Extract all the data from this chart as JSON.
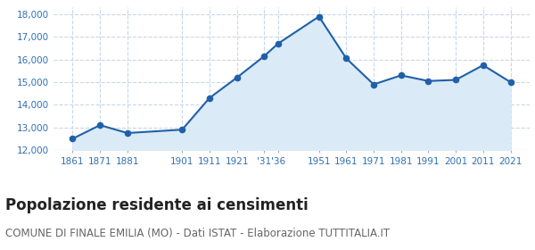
{
  "x_labels": [
    "1861",
    "1871",
    "1881",
    "",
    "1901",
    "1911",
    "1921",
    "'31",
    "'36",
    "",
    "1951",
    "1961",
    "1971",
    "1981",
    "1991",
    "2001",
    "2011",
    "2021"
  ],
  "x_tick_labels": [
    "1861",
    "1871",
    "1881",
    "1901",
    "1911",
    "1921",
    "'31'36",
    "1951",
    "1961",
    "1971",
    "1981",
    "1991",
    "2001",
    "2011",
    "2021"
  ],
  "x_values": [
    1861,
    1871,
    1881,
    1901,
    1911,
    1921,
    1931,
    1936,
    1951,
    1961,
    1971,
    1981,
    1991,
    2001,
    2011,
    2021
  ],
  "y_values": [
    12500,
    13100,
    12750,
    12900,
    14300,
    15200,
    16150,
    16700,
    17900,
    16050,
    14900,
    15300,
    15050,
    15100,
    15750,
    15000
  ],
  "x_tick_positions": [
    1861,
    1871,
    1881,
    1901,
    1911,
    1921,
    1931,
    1936,
    1951,
    1961,
    1971,
    1981,
    1991,
    2001,
    2011,
    2021
  ],
  "x_tick_display": [
    "1861",
    "1871",
    "1881",
    "1901",
    "1911",
    "1921",
    "'31",
    "'36",
    "1951",
    "1961",
    "1971",
    "1981",
    "1991",
    "2001",
    "2011",
    "2021"
  ],
  "line_color": "#2060a8",
  "fill_color": "#daeaf6",
  "marker_color": "#2060a8",
  "background_color": "#ffffff",
  "grid_color": "#c8d8e8",
  "ylim": [
    12000,
    18300
  ],
  "yticks": [
    12000,
    13000,
    14000,
    15000,
    16000,
    17000,
    18000
  ],
  "title": "Popolazione residente ai censimenti",
  "subtitle": "COMUNE DI FINALE EMILIA (MO) - Dati ISTAT - Elaborazione TUTTITALIA.IT",
  "title_fontsize": 12,
  "subtitle_fontsize": 8.5,
  "tick_label_color": "#3070b0",
  "xlim_left": 1854,
  "xlim_right": 2028
}
